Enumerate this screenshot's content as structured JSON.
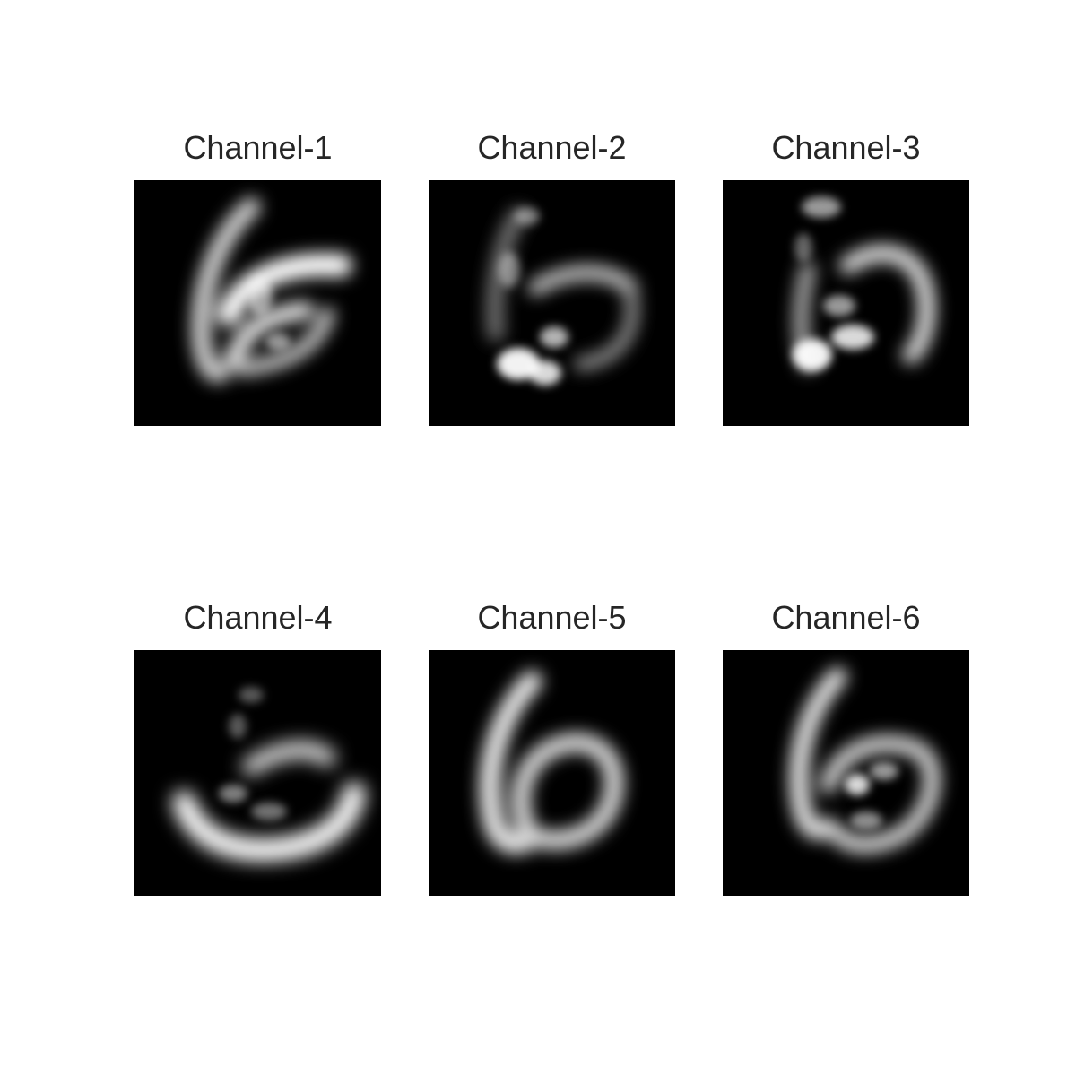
{
  "panels": [
    {
      "title": "Channel-1"
    },
    {
      "title": "Channel-2"
    },
    {
      "title": "Channel-3"
    },
    {
      "title": "Channel-4"
    },
    {
      "title": "Channel-5"
    },
    {
      "title": "Channel-6"
    }
  ],
  "colors": {
    "background": "#ffffff",
    "image_background": "#000000",
    "stroke": "#ffffff",
    "title_text": "#262626"
  }
}
